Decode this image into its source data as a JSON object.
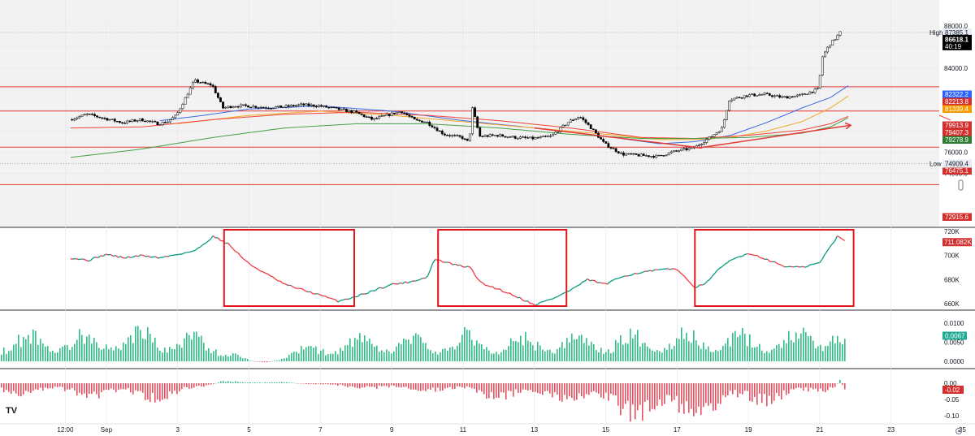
{
  "colors": {
    "up": "#089981",
    "down": "#f23645",
    "hist_up": "#2ebd85",
    "hist_down": "#e8505f",
    "level_line": "#e53935",
    "box": "#e0181e",
    "arrow": "#e53935",
    "ma_blue": "#3d6ae6",
    "ma_orange": "#f5a623",
    "ma_red": "#f44336",
    "ma_green": "#43a047",
    "label_blue": "#2962ff",
    "label_red": "#d32f2f",
    "label_orange": "#f59b00",
    "label_green": "#2e7d32",
    "label_black": "#000000"
  },
  "logo": "TV",
  "chart_data": [
    {
      "type": "candlestick",
      "pane": "price",
      "ylim": [
        72600,
        88600
      ],
      "y_ticks": [
        "88000.0",
        "84000.0",
        "78000.0",
        "76000.0",
        "74000.0"
      ],
      "price_labels": [
        {
          "kind": "high",
          "caption": "High",
          "value": "87385.1"
        },
        {
          "kind": "last",
          "value": "86618.1",
          "time": "40:19"
        },
        {
          "kind": "level",
          "value": "82322.2",
          "color": "blue"
        },
        {
          "kind": "level",
          "value": "82213.8",
          "color": "red"
        },
        {
          "kind": "level",
          "value": "81339.4",
          "color": "orange"
        },
        {
          "kind": "level",
          "value": "79913.9",
          "color": "red"
        },
        {
          "kind": "level",
          "value": "79407.3",
          "color": "red"
        },
        {
          "kind": "level",
          "value": "79278.9",
          "color": "green"
        },
        {
          "kind": "level",
          "value": "76475.1",
          "color": "red"
        },
        {
          "kind": "low",
          "caption": "Low",
          "value": "74909.4"
        },
        {
          "kind": "level",
          "value": "72915.6",
          "color": "red"
        }
      ],
      "horizontal_levels": [
        82213.8,
        79913.9,
        76475.1,
        72915.6
      ],
      "dotted_levels": [
        87385.1,
        74909.4
      ],
      "price_path": [
        [
          0,
          79100
        ],
        [
          0.5,
          79600
        ],
        [
          1,
          79200
        ],
        [
          1.5,
          78800
        ],
        [
          2,
          79100
        ],
        [
          2.5,
          78700
        ],
        [
          2.75,
          78900
        ],
        [
          3,
          79500
        ],
        [
          3.5,
          82800
        ],
        [
          3.8,
          82500
        ],
        [
          4,
          82400
        ],
        [
          4.3,
          80200
        ],
        [
          4.6,
          80400
        ],
        [
          5,
          80400
        ],
        [
          5.5,
          80250
        ],
        [
          6,
          80300
        ],
        [
          6.5,
          80500
        ],
        [
          7,
          80400
        ],
        [
          7.5,
          80100
        ],
        [
          8,
          79800
        ],
        [
          8.5,
          79100
        ],
        [
          9,
          79600
        ],
        [
          9.3,
          79900
        ],
        [
          9.7,
          79000
        ],
        [
          10,
          78900
        ],
        [
          10.5,
          77700
        ],
        [
          11,
          77400
        ],
        [
          11.2,
          76900
        ],
        [
          11.3,
          80200
        ],
        [
          11.5,
          77500
        ],
        [
          12,
          77600
        ],
        [
          12.5,
          77400
        ],
        [
          13,
          77300
        ],
        [
          13.5,
          77500
        ],
        [
          14,
          78900
        ],
        [
          14.3,
          79400
        ],
        [
          14.6,
          78400
        ],
        [
          15,
          76800
        ],
        [
          15.5,
          75800
        ],
        [
          16,
          75700
        ],
        [
          16.5,
          75600
        ],
        [
          17,
          76100
        ],
        [
          17.5,
          76400
        ],
        [
          18,
          77500
        ],
        [
          18.3,
          78300
        ],
        [
          18.5,
          81000
        ],
        [
          19,
          81400
        ],
        [
          19.5,
          81500
        ],
        [
          20,
          81200
        ],
        [
          20.5,
          81400
        ],
        [
          21,
          82000
        ],
        [
          21.1,
          85000
        ],
        [
          21.3,
          86200
        ],
        [
          21.5,
          86900
        ],
        [
          21.6,
          87385
        ]
      ],
      "moving_averages": [
        {
          "color": "blue",
          "points": [
            [
              2.5,
              79000
            ],
            [
              3.5,
              79400
            ],
            [
              5,
              80100
            ],
            [
              7,
              80400
            ],
            [
              9,
              79900
            ],
            [
              11,
              79000
            ],
            [
              13,
              78300
            ],
            [
              15,
              77500
            ],
            [
              16.5,
              76800
            ],
            [
              17.5,
              77000
            ],
            [
              18.5,
              77600
            ],
            [
              19.5,
              78800
            ],
            [
              20.5,
              80200
            ],
            [
              21.3,
              81200
            ],
            [
              21.8,
              82322.2
            ]
          ]
        },
        {
          "color": "orange",
          "points": [
            [
              3,
              78700
            ],
            [
              5,
              79500
            ],
            [
              7,
              79900
            ],
            [
              9,
              79500
            ],
            [
              11,
              78900
            ],
            [
              13,
              78300
            ],
            [
              15,
              77700
            ],
            [
              16.5,
              77200
            ],
            [
              17.5,
              77200
            ],
            [
              18.5,
              77400
            ],
            [
              19.5,
              78000
            ],
            [
              20.5,
              78900
            ],
            [
              21.3,
              80200
            ],
            [
              21.8,
              81339.4
            ]
          ]
        },
        {
          "color": "red",
          "points": [
            [
              0,
              78300
            ],
            [
              2,
              78400
            ],
            [
              4,
              79100
            ],
            [
              6,
              79600
            ],
            [
              8,
              79800
            ],
            [
              10,
              79500
            ],
            [
              12,
              79000
            ],
            [
              14,
              78300
            ],
            [
              16,
              77400
            ],
            [
              17.5,
              77300
            ],
            [
              19,
              77600
            ],
            [
              20.5,
              78100
            ],
            [
              21.3,
              78700
            ],
            [
              21.8,
              79407.3
            ]
          ]
        },
        {
          "color": "green",
          "points": [
            [
              0,
              75500
            ],
            [
              2,
              76300
            ],
            [
              4,
              77400
            ],
            [
              6,
              78300
            ],
            [
              8,
              78700
            ],
            [
              10,
              78700
            ],
            [
              12,
              78300
            ],
            [
              14,
              77700
            ],
            [
              16,
              77300
            ],
            [
              17.5,
              77300
            ],
            [
              19,
              77400
            ],
            [
              20.5,
              77800
            ],
            [
              21.3,
              78400
            ],
            [
              21.8,
              79278.9
            ]
          ]
        }
      ],
      "arrows": [
        {
          "from": [
            13.0,
            78300
          ],
          "to": [
            17.7,
            76400
          ]
        },
        {
          "from": [
            17.6,
            76400
          ],
          "to": [
            21.85,
            78550
          ]
        }
      ]
    },
    {
      "type": "line",
      "pane": "indicator",
      "ylim": [
        652,
        726
      ],
      "y_ticks": [
        "720K",
        "700K",
        "680K",
        "660K"
      ],
      "last_label": "711.082K",
      "series_path": [
        [
          0,
          698
        ],
        [
          0.5,
          696
        ],
        [
          1,
          701
        ],
        [
          1.5,
          698
        ],
        [
          2,
          700
        ],
        [
          2.5,
          698
        ],
        [
          3,
          701
        ],
        [
          3.5,
          704
        ],
        [
          4,
          716
        ],
        [
          4.4,
          710
        ],
        [
          5,
          693
        ],
        [
          6,
          676
        ],
        [
          7,
          667
        ],
        [
          7.5,
          662
        ],
        [
          8,
          666
        ],
        [
          8.5,
          671
        ],
        [
          9,
          676
        ],
        [
          9.5,
          678
        ],
        [
          10,
          682
        ],
        [
          10.2,
          697
        ],
        [
          10.8,
          692
        ],
        [
          11.2,
          690
        ],
        [
          11.5,
          677
        ],
        [
          12,
          672
        ],
        [
          12.5,
          666
        ],
        [
          13,
          659
        ],
        [
          13.5,
          664
        ],
        [
          14,
          671
        ],
        [
          14.5,
          680
        ],
        [
          15,
          676
        ],
        [
          15.5,
          683
        ],
        [
          16,
          686
        ],
        [
          16.5,
          688
        ],
        [
          17,
          689
        ],
        [
          17.3,
          679
        ],
        [
          17.5,
          674
        ],
        [
          17.8,
          676
        ],
        [
          18,
          684
        ],
        [
          18.5,
          696
        ],
        [
          19,
          702
        ],
        [
          19.5,
          697
        ],
        [
          20,
          691
        ],
        [
          20.5,
          690
        ],
        [
          21,
          694
        ],
        [
          21.2,
          703
        ],
        [
          21.5,
          716
        ],
        [
          21.75,
          711.082
        ]
      ],
      "boxes": [
        [
          4.3,
          7.95
        ],
        [
          10.3,
          13.9
        ],
        [
          17.5,
          21.95
        ]
      ]
    },
    {
      "type": "bar",
      "pane": "histogram_1",
      "ylim": [
        -0.001,
        0.0106
      ],
      "y_ticks": [
        "0.0100",
        "0.0050",
        "0.0000"
      ],
      "last_label": "0.0067",
      "baseline": 0.0,
      "series_path": [
        [
          0,
          0.007
        ],
        [
          2,
          0.008
        ],
        [
          3,
          0.0072
        ],
        [
          4,
          0.0055
        ],
        [
          4.5,
          0.003
        ],
        [
          5,
          0.0002
        ],
        [
          5.5,
          -0.0005
        ],
        [
          6,
          0.0018
        ],
        [
          7,
          0.0048
        ],
        [
          8,
          0.0058
        ],
        [
          9,
          0.0062
        ],
        [
          10,
          0.0056
        ],
        [
          11,
          0.007
        ],
        [
          12,
          0.006
        ],
        [
          13,
          0.0062
        ],
        [
          14,
          0.0062
        ],
        [
          15,
          0.0068
        ],
        [
          16,
          0.007
        ],
        [
          17,
          0.0072
        ],
        [
          18,
          0.007
        ],
        [
          19,
          0.0066
        ],
        [
          20,
          0.0074
        ],
        [
          21,
          0.009
        ],
        [
          21.3,
          0.0102
        ],
        [
          21.7,
          0.0067
        ]
      ]
    },
    {
      "type": "bar",
      "pane": "histogram_2",
      "ylim": [
        -0.123,
        0.014
      ],
      "y_ticks": [
        "0.00",
        "-0.05",
        "-0.10"
      ],
      "last_label": "-0.02",
      "baseline": 0.0,
      "series_path": [
        [
          0,
          -0.03
        ],
        [
          1,
          -0.04
        ],
        [
          2,
          -0.045
        ],
        [
          3,
          -0.038
        ],
        [
          3.8,
          -0.01
        ],
        [
          4.2,
          0.006
        ],
        [
          5,
          0.004
        ],
        [
          6,
          0.003
        ],
        [
          7,
          -0.006
        ],
        [
          8,
          -0.012
        ],
        [
          9,
          -0.02
        ],
        [
          10,
          -0.018
        ],
        [
          11,
          -0.026
        ],
        [
          12,
          -0.042
        ],
        [
          13,
          -0.04
        ],
        [
          14,
          -0.04
        ],
        [
          15,
          -0.07
        ],
        [
          16,
          -0.095
        ],
        [
          16.5,
          -0.105
        ],
        [
          17,
          -0.098
        ],
        [
          18,
          -0.08
        ],
        [
          19,
          -0.055
        ],
        [
          20,
          -0.045
        ],
        [
          21,
          -0.03
        ],
        [
          21.4,
          -0.01
        ],
        [
          21.55,
          0.008
        ],
        [
          21.7,
          -0.02
        ]
      ]
    }
  ],
  "x_axis": {
    "ticks": [
      {
        "day": -0.15,
        "label": "12:00"
      },
      {
        "day": 1,
        "label": "Sep"
      },
      {
        "day": 3,
        "label": "3"
      },
      {
        "day": 5,
        "label": "5"
      },
      {
        "day": 7,
        "label": "7"
      },
      {
        "day": 9,
        "label": "9"
      },
      {
        "day": 11,
        "label": "11"
      },
      {
        "day": 13,
        "label": "13"
      },
      {
        "day": 15,
        "label": "15"
      },
      {
        "day": 17,
        "label": "17"
      },
      {
        "day": 19,
        "label": "19"
      },
      {
        "day": 21,
        "label": "21"
      },
      {
        "day": 23,
        "label": "23"
      },
      {
        "day": 25,
        "label": "25"
      }
    ]
  }
}
